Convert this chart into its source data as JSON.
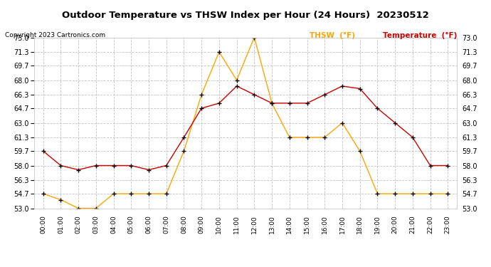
{
  "title": "Outdoor Temperature vs THSW Index per Hour (24 Hours)  20230512",
  "copyright": "Copyright 2023 Cartronics.com",
  "legend_thsw": "THSW  (°F)",
  "legend_temp": "Temperature  (°F)",
  "hours": [
    0,
    1,
    2,
    3,
    4,
    5,
    6,
    7,
    8,
    9,
    10,
    11,
    12,
    13,
    14,
    15,
    16,
    17,
    18,
    19,
    20,
    21,
    22,
    23
  ],
  "thsw": [
    54.7,
    54.0,
    53.0,
    53.0,
    54.7,
    54.7,
    54.7,
    54.7,
    59.7,
    66.3,
    71.3,
    68.0,
    73.0,
    65.3,
    61.3,
    61.3,
    61.3,
    63.0,
    59.7,
    54.7,
    54.7,
    54.7,
    54.7,
    54.7
  ],
  "temperature": [
    59.7,
    58.0,
    57.5,
    58.0,
    58.0,
    58.0,
    57.5,
    58.0,
    61.3,
    64.7,
    65.3,
    67.3,
    66.3,
    65.3,
    65.3,
    65.3,
    66.3,
    67.3,
    67.0,
    64.7,
    63.0,
    61.3,
    58.0,
    58.0
  ],
  "ylim": [
    53.0,
    73.0
  ],
  "yticks": [
    53.0,
    54.7,
    56.3,
    58.0,
    59.7,
    61.3,
    63.0,
    64.7,
    66.3,
    68.0,
    69.7,
    71.3,
    73.0
  ],
  "thsw_color": "#FFA500",
  "temp_color": "#CC0000",
  "bg_color": "#ffffff",
  "grid_color": "#bbbbbb",
  "title_color": "#000000",
  "copyright_color": "#000000",
  "legend_thsw_color": "#FFA500",
  "legend_temp_color": "#CC0000",
  "marker_color": "#000000"
}
